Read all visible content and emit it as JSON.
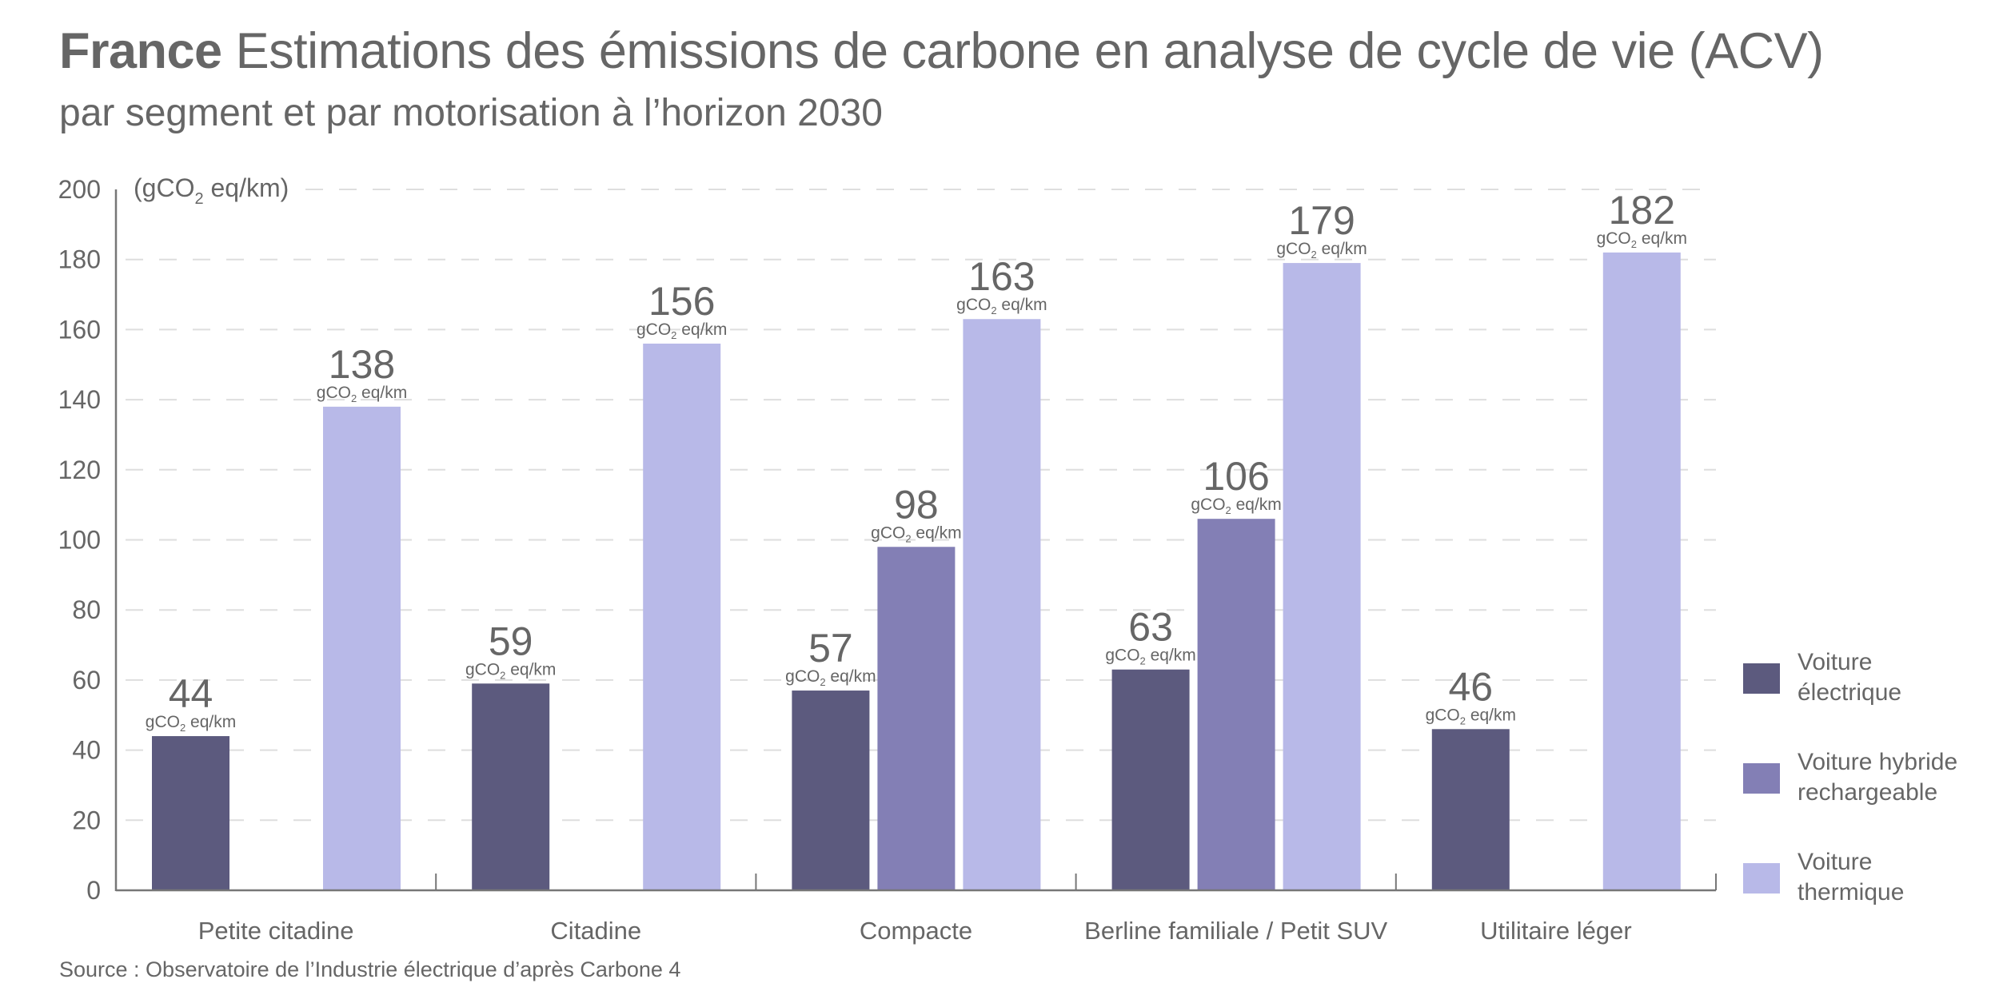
{
  "header": {
    "title_bold": "France",
    "title_rest": "Estimations des émissions de carbone en analyse de cycle de vie (ACV)",
    "subtitle": "par segment et par motorisation à l’horizon 2030"
  },
  "source": "Source : Observatoire de l’Industrie électrique d’après Carbone 4",
  "colors": {
    "electrique": "#5c5a7e",
    "hybride": "#837fb5",
    "thermique": "#b8b9e8",
    "text": "#666666",
    "grid": "#dedede",
    "axis": "#777777"
  },
  "chart_data": {
    "type": "bar",
    "title": "France Estimations des émissions de carbone en analyse de cycle de vie (ACV)",
    "subtitle": "par segment et par motorisation à l’horizon 2030",
    "xlabel": "",
    "ylabel": "(gCO2 eq/km)",
    "ylabel_parts": {
      "pre": "(gCO",
      "sub": "2",
      "post": " eq/km)"
    },
    "value_unit_parts": {
      "pre": "gCO",
      "sub": "2",
      "post": " eq/km"
    },
    "ylim": [
      0,
      200
    ],
    "yticks": [
      0,
      20,
      40,
      60,
      80,
      100,
      120,
      140,
      160,
      180,
      200
    ],
    "grid": true,
    "legend_position": "right",
    "categories": [
      "Petite citadine",
      "Citadine",
      "Compacte",
      "Berline familiale / Petit SUV",
      "Utilitaire léger"
    ],
    "series": [
      {
        "key": "electrique",
        "name": "Voiture électrique",
        "legend_lines": [
          "Voiture",
          "électrique"
        ],
        "color": "#5c5a7e",
        "values": [
          44,
          59,
          57,
          63,
          46
        ]
      },
      {
        "key": "hybride",
        "name": "Voiture hybride rechargeable",
        "legend_lines": [
          "Voiture hybride",
          "rechargeable"
        ],
        "color": "#837fb5",
        "values": [
          null,
          null,
          98,
          106,
          null
        ]
      },
      {
        "key": "thermique",
        "name": "Voiture thermique",
        "legend_lines": [
          "Voiture",
          "thermique"
        ],
        "color": "#b8b9e8",
        "values": [
          138,
          156,
          163,
          179,
          182
        ]
      }
    ]
  }
}
